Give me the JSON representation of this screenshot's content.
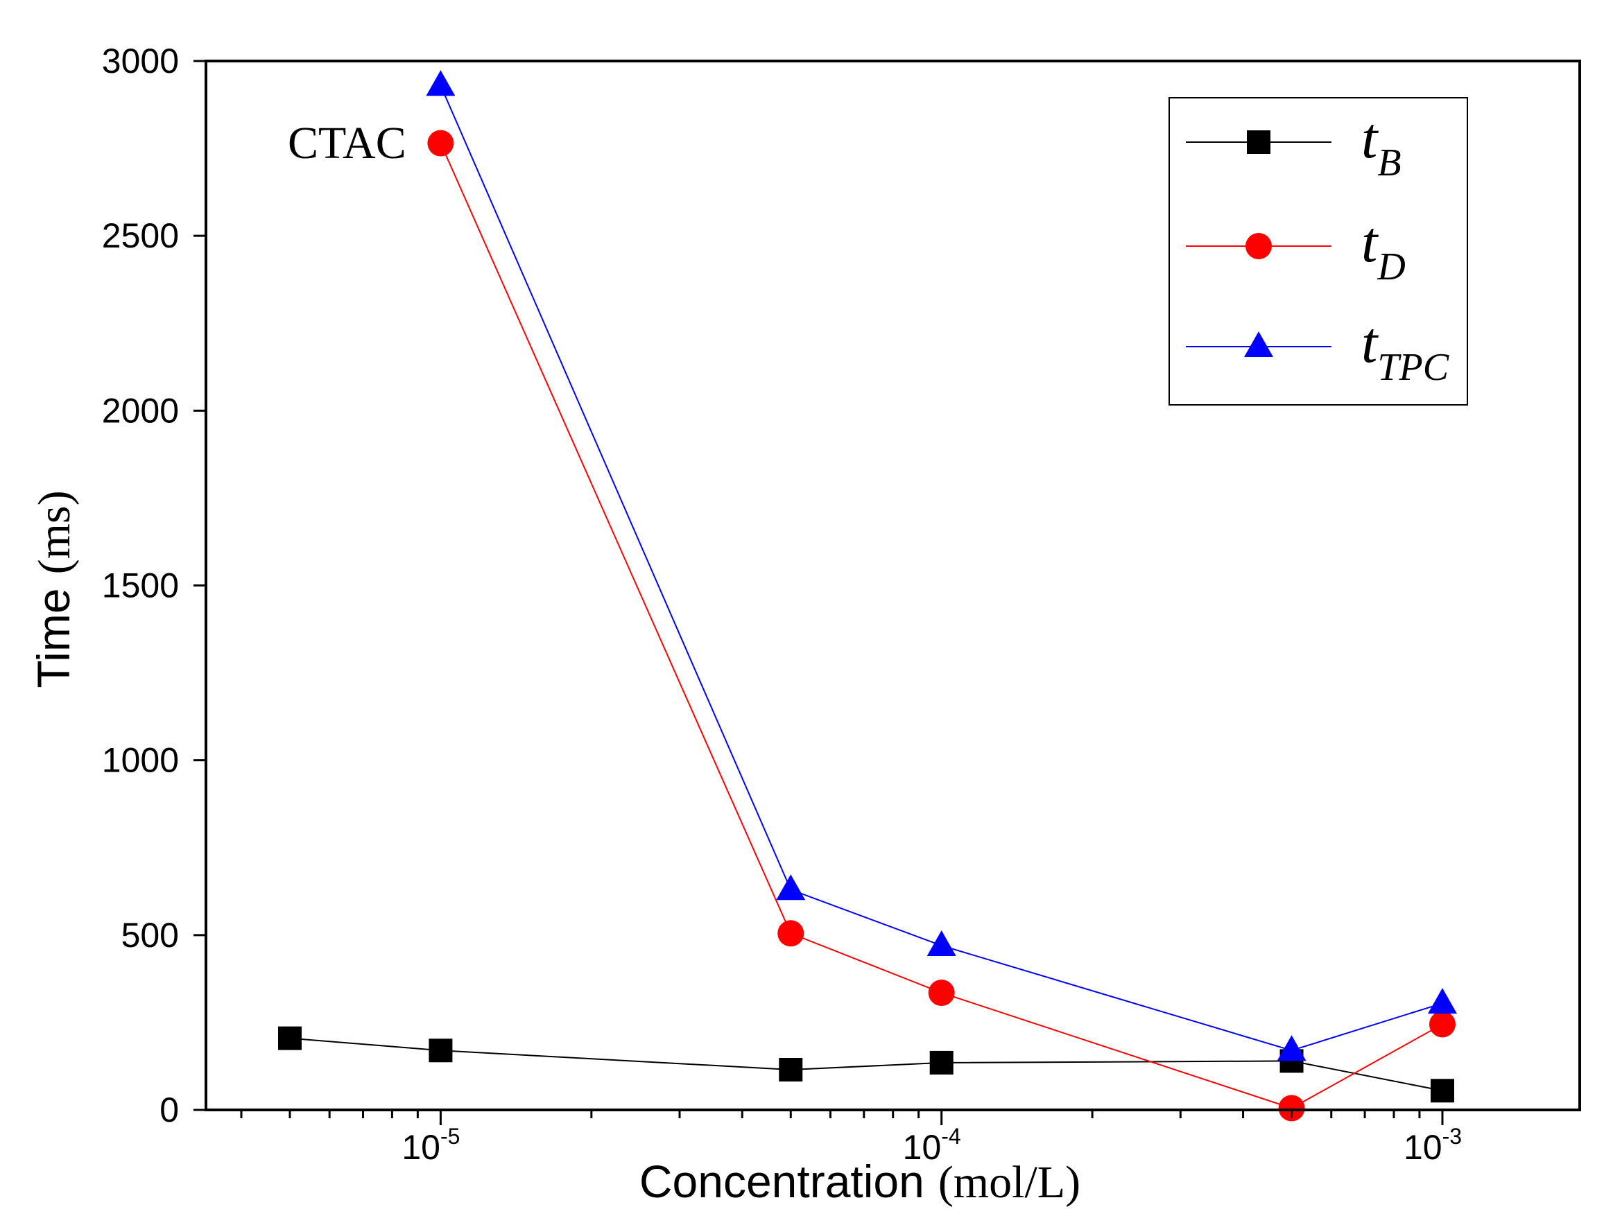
{
  "chart_data": {
    "type": "line",
    "title": "",
    "annotation": "CTAC",
    "xlabel": {
      "main": "Concentration",
      "unit": "(mol/L)"
    },
    "ylabel": {
      "main": "Time",
      "unit": "(ms)"
    },
    "xscale": "log",
    "xlim": [
      3.4e-06,
      0.00188
    ],
    "ylim": [
      0,
      3000
    ],
    "x_ticks": [
      {
        "base": "10",
        "exp": "-5",
        "value": 1e-05
      },
      {
        "base": "10",
        "exp": "-4",
        "value": 0.0001
      },
      {
        "base": "10",
        "exp": "-3",
        "value": 0.001
      }
    ],
    "y_ticks": [
      "0",
      "500",
      "1000",
      "1500",
      "2000",
      "2500",
      "3000"
    ],
    "legend_position": "top-right",
    "series": [
      {
        "name": "t_B",
        "legend": {
          "main": "t",
          "sub": "B"
        },
        "color": "#000000",
        "marker": "square",
        "x": [
          5e-06,
          1e-05,
          5e-05,
          0.0001,
          0.0005,
          0.001
        ],
        "y": [
          205,
          170,
          115,
          135,
          140,
          55
        ]
      },
      {
        "name": "t_D",
        "legend": {
          "main": "t",
          "sub": "D"
        },
        "color": "#ff0000",
        "marker": "circle",
        "x": [
          1e-05,
          5e-05,
          0.0001,
          0.0005,
          0.001
        ],
        "y": [
          2765,
          505,
          335,
          5,
          245
        ]
      },
      {
        "name": "t_TPC",
        "legend": {
          "main": "t",
          "sub": "TPC"
        },
        "color": "#0000ff",
        "marker": "triangle",
        "x": [
          1e-05,
          5e-05,
          0.0001,
          0.0005,
          0.001
        ],
        "y": [
          2930,
          630,
          470,
          170,
          305
        ]
      }
    ]
  }
}
